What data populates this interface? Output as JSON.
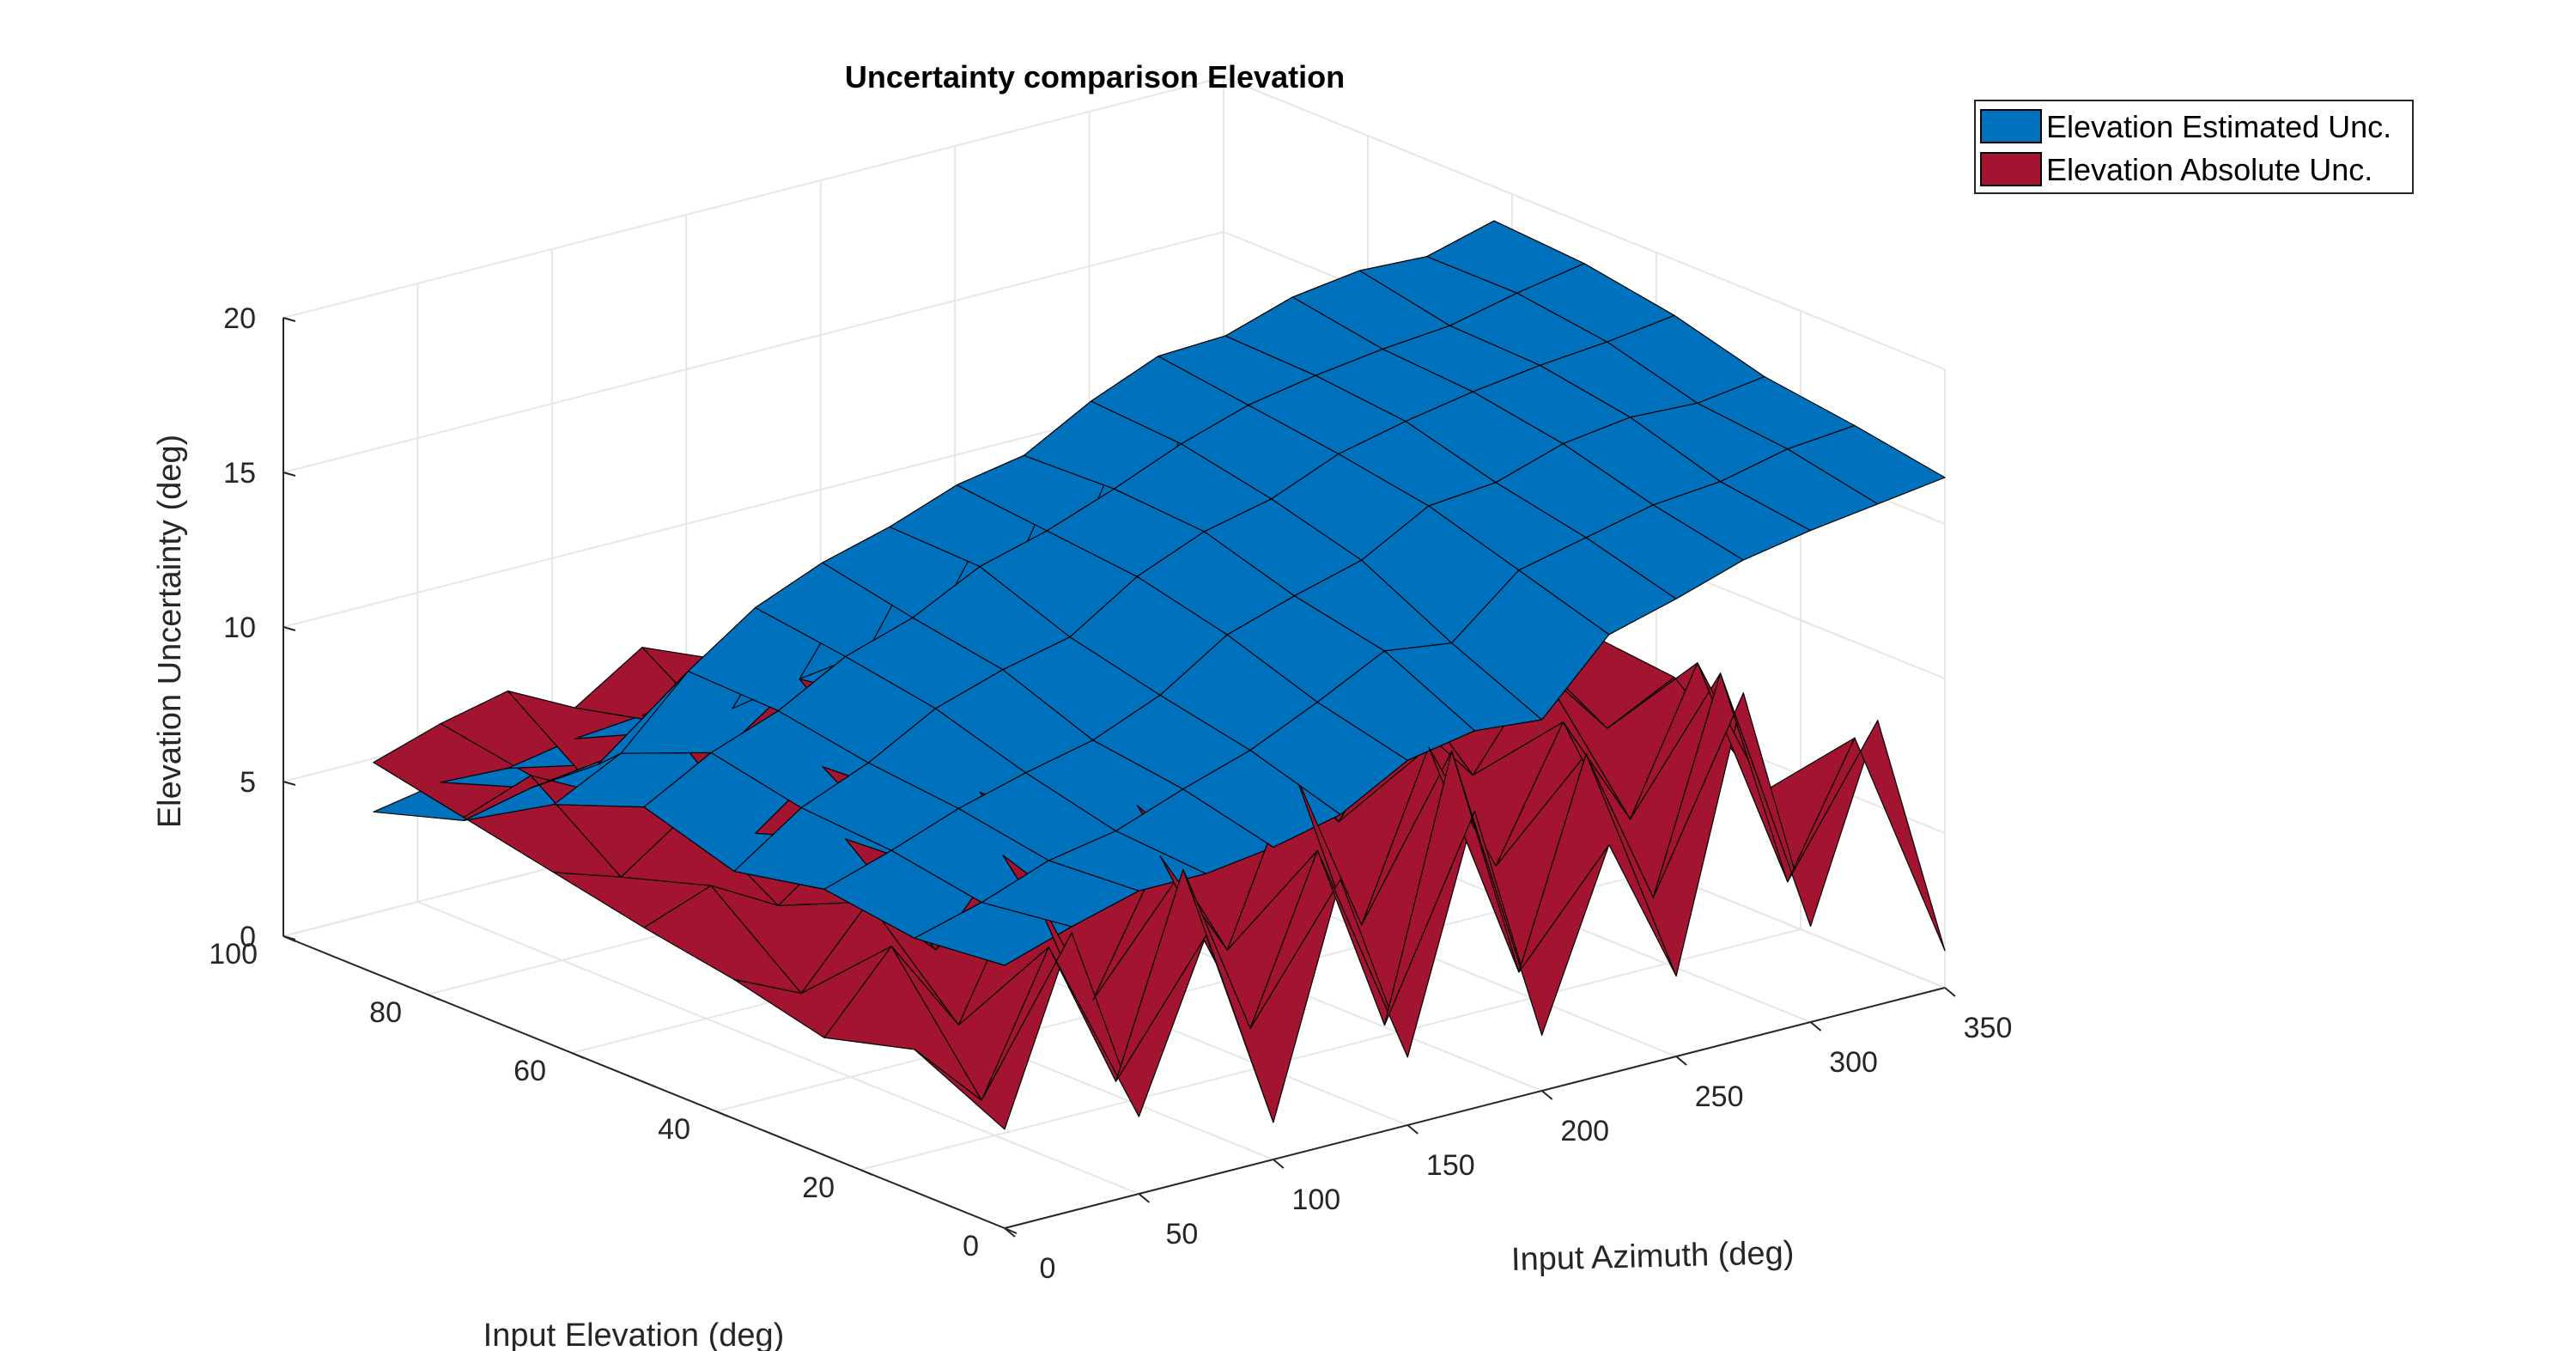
{
  "chart_data": {
    "type": "surface",
    "title": "Uncertainty comparison Elevation",
    "xlabel": "Input Azimuth (deg)",
    "ylabel": "Input Elevation (deg)",
    "zlabel": "Elevation  Uncertainty (deg)",
    "xlim": [
      0,
      350
    ],
    "ylim": [
      0,
      100
    ],
    "zlim": [
      0,
      20
    ],
    "xticks": [
      "0",
      "50",
      "100",
      "150",
      "200",
      "250",
      "300",
      "350"
    ],
    "yticks": [
      "0",
      "20",
      "40",
      "60",
      "80",
      "100"
    ],
    "zticks": [
      "0",
      "5",
      "10",
      "15",
      "20"
    ],
    "grid": true,
    "legend_position": "top-right",
    "azimuth_grid": [
      0,
      25,
      50,
      75,
      100,
      125,
      150,
      175,
      200,
      225,
      250,
      275,
      300,
      325,
      350
    ],
    "elevation_grid": [
      0,
      12.5,
      25,
      37.5,
      50,
      62.5,
      75,
      87.5
    ],
    "series": [
      {
        "name": "Elevation Estimated Unc.",
        "color": "#0072BD",
        "z": [
          [
            8.5,
            9.2,
            9.8,
            9.8,
            10.1,
            10.6,
            11.8,
            12.2,
            12.0,
            14.2,
            14.8,
            15.5,
            15.9,
            16.2,
            16.5
          ],
          [
            8.2,
            8.8,
            9.6,
            10.0,
            10.8,
            11.5,
            12.5,
            13.6,
            13.3,
            15.1,
            15.6,
            16.1,
            16.3,
            16.8,
            17.0
          ],
          [
            8.6,
            9.3,
            10.1,
            10.7,
            11.2,
            12.1,
            13.5,
            14.2,
            14.8,
            16.0,
            16.2,
            16.9,
            17.2,
            17.1,
            17.4
          ],
          [
            8.0,
            9.5,
            10.4,
            11.6,
            12.3,
            12.8,
            14.2,
            15.1,
            15.6,
            16.5,
            17.0,
            17.4,
            17.7,
            17.9,
            18.2
          ],
          [
            8.9,
            10.1,
            10.9,
            12.1,
            12.8,
            13.9,
            14.5,
            15.3,
            16.2,
            16.9,
            17.3,
            17.6,
            17.8,
            18.3,
            18.7
          ],
          [
            7.8,
            8.9,
            11.0,
            12.5,
            13.4,
            14.0,
            14.8,
            15.2,
            16.4,
            17.3,
            17.4,
            18.1,
            18.4,
            18.3,
            18.9
          ],
          [
            6.1,
            6.6,
            6.8,
            7.3,
            7.5,
            7.9,
            8.2,
            8.5,
            8.8,
            9.2,
            9.6,
            10.0,
            10.3,
            10.8,
            11.2
          ],
          [
            5.2,
            5.6,
            5.5,
            5.9,
            6.1,
            6.4,
            6.0,
            6.6,
            6.9,
            7.1,
            7.5,
            7.7,
            8.0,
            8.3,
            8.6
          ]
        ]
      },
      {
        "name": "Elevation Absolute Unc.",
        "color": "#A2142F",
        "z": [
          [
            3.2,
            9.0,
            2.5,
            7.8,
            1.2,
            8.5,
            2.2,
            9.6,
            1.8,
            7.4,
            2.6,
            11.2,
            3.1,
            9.2,
            1.2
          ],
          [
            4.6,
            2.4,
            6.8,
            1.9,
            8.2,
            2.5,
            7.7,
            1.5,
            9.8,
            2.1,
            8.6,
            3.4,
            10.1,
            2.8,
            6.9
          ],
          [
            3.8,
            6.2,
            3.1,
            7.4,
            2.8,
            6.9,
            3.3,
            8.5,
            3.0,
            8.2,
            3.8,
            7.9,
            4.2,
            8.7,
            4.0
          ],
          [
            4.5,
            3.5,
            5.9,
            3.8,
            6.3,
            4.1,
            6.8,
            4.4,
            7.2,
            4.6,
            7.5,
            5.0,
            7.9,
            5.4,
            6.5
          ],
          [
            5.0,
            5.8,
            4.6,
            6.2,
            4.9,
            6.6,
            5.2,
            7.0,
            5.5,
            7.3,
            5.9,
            7.8,
            6.3,
            7.1,
            6.8
          ],
          [
            5.6,
            4.9,
            6.4,
            5.2,
            6.8,
            5.5,
            7.1,
            5.8,
            7.4,
            6.0,
            7.7,
            6.3,
            8.0,
            6.6,
            7.5
          ],
          [
            6.2,
            7.0,
            5.9,
            7.6,
            6.4,
            7.9,
            6.8,
            8.3,
            7.1,
            8.6,
            7.4,
            8.9,
            7.6,
            9.2,
            8.0
          ],
          [
            6.8,
            7.5,
            8.0,
            6.9,
            8.3,
            7.4,
            8.7,
            7.8,
            9.0,
            8.1,
            9.3,
            8.4,
            9.5,
            8.8,
            9.1
          ]
        ]
      }
    ]
  }
}
